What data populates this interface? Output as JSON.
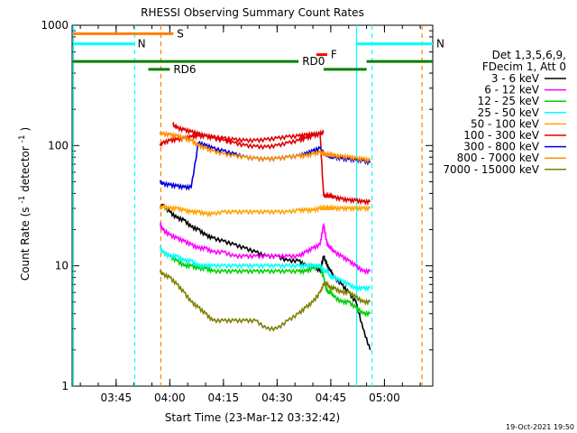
{
  "chart_data": {
    "type": "line",
    "title": "RHESSI Observing Summary Count Rates",
    "xlabel": "Start Time (23-Mar-12 03:32:42)",
    "ylabel_parts": [
      "Count Rate (s",
      "-1",
      " detector",
      "-1",
      ")"
    ],
    "x_ticks": [
      "03:45",
      "04:00",
      "04:15",
      "04:30",
      "04:45",
      "05:00"
    ],
    "x_tick_minutes": [
      225,
      240,
      255,
      270,
      285,
      300
    ],
    "x_range_minutes": [
      212.7,
      313.5
    ],
    "y_ticks": [
      "1",
      "10",
      "100",
      "1000"
    ],
    "y_tick_values": [
      1,
      10,
      100,
      1000
    ],
    "ylim": [
      1,
      1000
    ],
    "y_scale": "log",
    "legend": {
      "header": [
        "Det 1,3,5,6,9,",
        "FDecim 1, Att 0"
      ],
      "placement": "right"
    },
    "series": [
      {
        "name": "3 - 6 keV",
        "color": "#000000",
        "x": [
          237.3,
          238,
          240,
          242,
          244,
          246,
          248,
          250,
          252,
          255,
          258,
          261,
          264,
          267,
          270,
          273,
          276,
          278,
          280,
          282,
          283,
          284,
          285,
          286,
          288,
          290,
          292,
          294,
          296
        ],
        "y": [
          30,
          32,
          28,
          25,
          24,
          21,
          20,
          18,
          17,
          16,
          15,
          14,
          13,
          12,
          12,
          11,
          11,
          10,
          10,
          9,
          12,
          10,
          9,
          8,
          7,
          6,
          5,
          3,
          2
        ]
      },
      {
        "name": "6 - 12 keV",
        "color": "#ff00ff",
        "x": [
          237.3,
          238,
          240,
          242,
          244,
          246,
          248,
          250,
          252,
          255,
          258,
          261,
          264,
          267,
          270,
          273,
          276,
          278,
          280,
          282,
          283,
          284,
          285,
          286,
          288,
          290,
          292,
          294,
          296
        ],
        "y": [
          22,
          20,
          18,
          17,
          16,
          15,
          14,
          14,
          13,
          13,
          12,
          12,
          12,
          12,
          12,
          12,
          12,
          13,
          14,
          15,
          22,
          15,
          14,
          13,
          12,
          11,
          10,
          9,
          9
        ]
      },
      {
        "name": "12 - 25 keV",
        "color": "#00d000",
        "x": [
          237.3,
          238,
          240,
          242,
          244,
          246,
          248,
          250,
          252,
          255,
          258,
          261,
          264,
          267,
          270,
          273,
          276,
          278,
          280,
          282,
          283,
          284,
          285,
          286,
          288,
          290,
          292,
          294,
          296
        ],
        "y": [
          14,
          13,
          12,
          11,
          10,
          10,
          9.5,
          9.5,
          9,
          9,
          9,
          9,
          9,
          9,
          9,
          9,
          9,
          9,
          9.5,
          10,
          8,
          6,
          6,
          5.5,
          5,
          5,
          4.5,
          4,
          4
        ]
      },
      {
        "name": "25 - 50 keV",
        "color": "#00ffff",
        "x": [
          237.3,
          238,
          240,
          242,
          244,
          246,
          248,
          250,
          252,
          255,
          258,
          261,
          264,
          267,
          270,
          273,
          276,
          278,
          280,
          282,
          283,
          284,
          285,
          286,
          288,
          290,
          292,
          294,
          296
        ],
        "y": [
          14,
          13,
          12,
          12,
          11,
          11,
          10,
          10,
          10,
          10,
          10,
          10,
          10,
          10,
          10,
          10,
          10,
          10,
          10,
          10,
          9,
          9,
          8,
          8,
          7.5,
          7,
          6.5,
          6.5,
          6.5
        ]
      },
      {
        "name": "50 - 100 keV",
        "color": "#ffa500",
        "x": [
          237.3,
          238,
          240,
          242,
          244,
          246,
          248,
          250,
          252,
          255,
          258,
          261,
          264,
          267,
          270,
          273,
          276,
          278,
          280,
          282,
          283,
          284,
          285,
          286,
          288,
          290,
          292,
          294,
          296
        ],
        "y": [
          30,
          31,
          30,
          30,
          29,
          28,
          28,
          27,
          27,
          28,
          28,
          28,
          28,
          28,
          28,
          28,
          29,
          29,
          29,
          30,
          30,
          30,
          30,
          30,
          30,
          30,
          30,
          30,
          30
        ]
      },
      {
        "name": "100 - 300 keV",
        "color": "#e00000",
        "x": [
          237.3,
          238,
          240,
          242,
          244,
          246,
          248,
          250,
          252,
          255,
          258,
          261,
          264,
          267,
          270,
          273,
          276,
          278,
          280,
          282,
          283,
          284,
          285,
          286,
          288,
          290,
          292,
          294,
          296
        ],
        "y": [
          100,
          105,
          110,
          112,
          115,
          118,
          120,
          120,
          118,
          115,
          112,
          110,
          110,
          112,
          115,
          118,
          120,
          122,
          124,
          125,
          38,
          38,
          38,
          37,
          36,
          35,
          35,
          34,
          34
        ]
      },
      {
        "name": "300 - 800 keV",
        "color": "#0000e0",
        "x": [
          237.3,
          238,
          240,
          242,
          244,
          246,
          248,
          250,
          252,
          255,
          258,
          261,
          264,
          267,
          270,
          273,
          276,
          278,
          280,
          282,
          283,
          284,
          285,
          286,
          288,
          290,
          292,
          294,
          296
        ],
        "y": [
          50,
          48,
          47,
          46,
          45,
          45,
          105,
          100,
          95,
          90,
          85,
          80,
          78,
          77,
          78,
          80,
          82,
          85,
          90,
          95,
          85,
          83,
          80,
          80,
          78,
          77,
          76,
          75,
          72
        ]
      },
      {
        "name": "800 - 7000 keV",
        "color": "#ff9000",
        "x": [
          237.3,
          238,
          240,
          242,
          244,
          246,
          248,
          250,
          252,
          255,
          258,
          261,
          264,
          267,
          270,
          273,
          276,
          278,
          280,
          282,
          283,
          284,
          285,
          286,
          288,
          290,
          292,
          294,
          296
        ],
        "y": [
          125,
          125,
          123,
          120,
          115,
          110,
          100,
          95,
          90,
          85,
          82,
          80,
          78,
          77,
          78,
          80,
          82,
          82,
          85,
          88,
          85,
          84,
          83,
          82,
          81,
          80,
          78,
          77,
          75
        ]
      },
      {
        "name": "7000 - 15000 keV",
        "color": "#808000",
        "x": [
          237.3,
          238,
          240,
          242,
          244,
          246,
          248,
          250,
          252,
          255,
          258,
          261,
          264,
          267,
          270,
          273,
          276,
          278,
          280,
          282,
          283,
          284,
          285,
          286,
          288,
          290,
          292,
          294,
          296
        ],
        "y": [
          9,
          8.5,
          8,
          7,
          6,
          5,
          4.5,
          4,
          3.5,
          3.5,
          3.5,
          3.5,
          3.5,
          3,
          3,
          3.5,
          4,
          4.5,
          5,
          6,
          7,
          7,
          6.5,
          6.5,
          6,
          6,
          5.5,
          5,
          5
        ]
      }
    ],
    "extra_series": [
      {
        "name": "100 - 300 keV upper",
        "color": "#e00000",
        "x": [
          240.8,
          242,
          244,
          246,
          248,
          250,
          252,
          255,
          258,
          261,
          264,
          267,
          270,
          273,
          276,
          278,
          280,
          282,
          283
        ],
        "y": [
          150,
          140,
          135,
          130,
          125,
          120,
          115,
          110,
          105,
          100,
          98,
          97,
          100,
          105,
          110,
          115,
          120,
          125,
          128
        ]
      },
      {
        "name": "6 - 12 keV early",
        "color": "#ff00ff",
        "x": [
          237.3,
          238,
          240
        ],
        "y": [
          22,
          20,
          18
        ]
      }
    ],
    "status_bars": [
      {
        "label": "S",
        "color": "#ff8000",
        "x": [
          213,
          241
        ],
        "y": 850
      },
      {
        "label": "N",
        "color": "#00ffff",
        "x": [
          213,
          230
        ],
        "y": 700
      },
      {
        "label": "N",
        "color": "#00ffff",
        "x": [
          292,
          313.5
        ],
        "y": 700
      },
      {
        "label": "F",
        "color": "#ff0000",
        "x": [
          281,
          284
        ],
        "y": 570
      },
      {
        "label": "RD0",
        "color": "#008000",
        "x": [
          213,
          276
        ],
        "y": 500
      },
      {
        "label": "RD6",
        "color": "#008000",
        "x": [
          234,
          240
        ],
        "y": 430
      },
      {
        "label": "",
        "color": "#008000",
        "x": [
          283,
          295
        ],
        "y": 430
      },
      {
        "label": "",
        "color": "#008000",
        "x": [
          295,
          313.5
        ],
        "y": 500
      }
    ],
    "vertical_lines": [
      {
        "x": 213.1,
        "color": "#00ffff",
        "style": "solid"
      },
      {
        "x": 230.2,
        "color": "#00ffff",
        "style": "dashed"
      },
      {
        "x": 237.5,
        "color": "#ff8000",
        "style": "dashed"
      },
      {
        "x": 292.2,
        "color": "#00ffff",
        "style": "solid"
      },
      {
        "x": 296.5,
        "color": "#00ffff",
        "style": "dashed"
      },
      {
        "x": 310.5,
        "color": "#ff8000",
        "style": "dashed"
      }
    ],
    "footer": "19-Oct-2021 19:50",
    "background": "#ffffff"
  }
}
